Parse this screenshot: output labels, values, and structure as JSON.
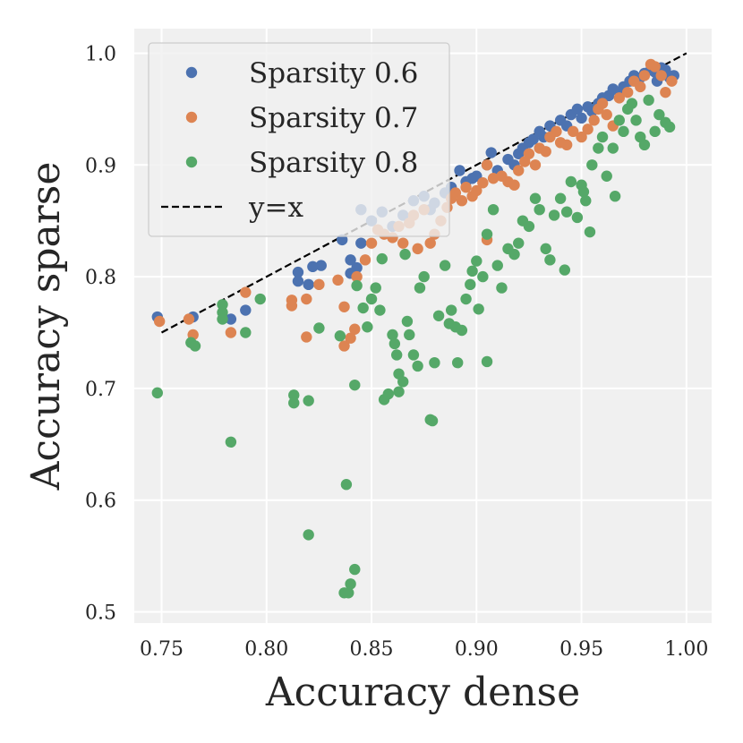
{
  "chart_data": {
    "type": "scatter",
    "xlabel": "Accuracy dense",
    "ylabel": "Accuracy sparse",
    "xlim": [
      0.737,
      1.012
    ],
    "ylim": [
      0.49,
      1.022
    ],
    "xticks": [
      0.75,
      0.8,
      0.85,
      0.9,
      0.95,
      1.0
    ],
    "xtick_labels": [
      "0.75",
      "0.80",
      "0.85",
      "0.90",
      "0.95",
      "1.00"
    ],
    "yticks": [
      0.5,
      0.6,
      0.7,
      0.8,
      0.9,
      1.0
    ],
    "ytick_labels": [
      "0.5",
      "0.6",
      "0.7",
      "0.8",
      "0.9",
      "1.0"
    ],
    "grid": true,
    "legend_position": "top-left",
    "reference_line": {
      "name": "y=x",
      "x": [
        0.75,
        1.0
      ],
      "y": [
        0.75,
        1.0
      ],
      "color": "#000000",
      "style": "dashed"
    },
    "series": [
      {
        "name": "Sparsity 0.6",
        "color": "#4c72b0",
        "points": [
          [
            0.748,
            0.764
          ],
          [
            0.765,
            0.764
          ],
          [
            0.783,
            0.762
          ],
          [
            0.79,
            0.77
          ],
          [
            0.815,
            0.804
          ],
          [
            0.815,
            0.796
          ],
          [
            0.822,
            0.809
          ],
          [
            0.826,
            0.81
          ],
          [
            0.82,
            0.793
          ],
          [
            0.836,
            0.833
          ],
          [
            0.84,
            0.815
          ],
          [
            0.845,
            0.83
          ],
          [
            0.84,
            0.803
          ],
          [
            0.843,
            0.808
          ],
          [
            0.845,
            0.86
          ],
          [
            0.85,
            0.85
          ],
          [
            0.855,
            0.858
          ],
          [
            0.86,
            0.845
          ],
          [
            0.865,
            0.855
          ],
          [
            0.87,
            0.868
          ],
          [
            0.875,
            0.872
          ],
          [
            0.878,
            0.86
          ],
          [
            0.88,
            0.866
          ],
          [
            0.885,
            0.875
          ],
          [
            0.888,
            0.88
          ],
          [
            0.892,
            0.895
          ],
          [
            0.895,
            0.885
          ],
          [
            0.898,
            0.888
          ],
          [
            0.9,
            0.89
          ],
          [
            0.905,
            0.9
          ],
          [
            0.907,
            0.911
          ],
          [
            0.91,
            0.895
          ],
          [
            0.915,
            0.905
          ],
          [
            0.918,
            0.9
          ],
          [
            0.92,
            0.91
          ],
          [
            0.922,
            0.915
          ],
          [
            0.925,
            0.92
          ],
          [
            0.927,
            0.923
          ],
          [
            0.93,
            0.93
          ],
          [
            0.932,
            0.925
          ],
          [
            0.935,
            0.935
          ],
          [
            0.937,
            0.93
          ],
          [
            0.94,
            0.94
          ],
          [
            0.943,
            0.935
          ],
          [
            0.945,
            0.945
          ],
          [
            0.948,
            0.95
          ],
          [
            0.95,
            0.942
          ],
          [
            0.953,
            0.952
          ],
          [
            0.955,
            0.948
          ],
          [
            0.958,
            0.955
          ],
          [
            0.96,
            0.96
          ],
          [
            0.963,
            0.962
          ],
          [
            0.965,
            0.968
          ],
          [
            0.968,
            0.965
          ],
          [
            0.97,
            0.97
          ],
          [
            0.973,
            0.975
          ],
          [
            0.975,
            0.98
          ],
          [
            0.978,
            0.978
          ],
          [
            0.98,
            0.982
          ],
          [
            0.983,
            0.985
          ],
          [
            0.985,
            0.983
          ],
          [
            0.988,
            0.987
          ],
          [
            0.99,
            0.985
          ],
          [
            0.992,
            0.978
          ],
          [
            0.994,
            0.98
          ],
          [
            0.986,
            0.975
          ]
        ]
      },
      {
        "name": "Sparsity 0.7",
        "color": "#dd8452",
        "points": [
          [
            0.749,
            0.76
          ],
          [
            0.763,
            0.762
          ],
          [
            0.765,
            0.748
          ],
          [
            0.783,
            0.75
          ],
          [
            0.79,
            0.786
          ],
          [
            0.812,
            0.779
          ],
          [
            0.812,
            0.774
          ],
          [
            0.819,
            0.78
          ],
          [
            0.819,
            0.746
          ],
          [
            0.825,
            0.793
          ],
          [
            0.834,
            0.797
          ],
          [
            0.837,
            0.738
          ],
          [
            0.837,
            0.773
          ],
          [
            0.84,
            0.745
          ],
          [
            0.842,
            0.753
          ],
          [
            0.843,
            0.8
          ],
          [
            0.847,
            0.815
          ],
          [
            0.85,
            0.83
          ],
          [
            0.853,
            0.842
          ],
          [
            0.856,
            0.838
          ],
          [
            0.86,
            0.835
          ],
          [
            0.863,
            0.845
          ],
          [
            0.865,
            0.83
          ],
          [
            0.868,
            0.848
          ],
          [
            0.87,
            0.855
          ],
          [
            0.872,
            0.825
          ],
          [
            0.875,
            0.86
          ],
          [
            0.878,
            0.83
          ],
          [
            0.88,
            0.838
          ],
          [
            0.883,
            0.85
          ],
          [
            0.886,
            0.862
          ],
          [
            0.888,
            0.87
          ],
          [
            0.89,
            0.875
          ],
          [
            0.893,
            0.868
          ],
          [
            0.895,
            0.88
          ],
          [
            0.898,
            0.872
          ],
          [
            0.9,
            0.877
          ],
          [
            0.903,
            0.884
          ],
          [
            0.905,
            0.9
          ],
          [
            0.905,
            0.833
          ],
          [
            0.908,
            0.888
          ],
          [
            0.912,
            0.89
          ],
          [
            0.915,
            0.885
          ],
          [
            0.918,
            0.882
          ],
          [
            0.92,
            0.895
          ],
          [
            0.923,
            0.903
          ],
          [
            0.925,
            0.91
          ],
          [
            0.928,
            0.9
          ],
          [
            0.93,
            0.915
          ],
          [
            0.933,
            0.912
          ],
          [
            0.935,
            0.925
          ],
          [
            0.938,
            0.93
          ],
          [
            0.94,
            0.92
          ],
          [
            0.943,
            0.918
          ],
          [
            0.946,
            0.93
          ],
          [
            0.95,
            0.925
          ],
          [
            0.953,
            0.932
          ],
          [
            0.956,
            0.94
          ],
          [
            0.958,
            0.95
          ],
          [
            0.96,
            0.955
          ],
          [
            0.962,
            0.945
          ],
          [
            0.965,
            0.935
          ],
          [
            0.968,
            0.96
          ],
          [
            0.972,
            0.965
          ],
          [
            0.975,
            0.975
          ],
          [
            0.978,
            0.97
          ],
          [
            0.98,
            0.98
          ],
          [
            0.983,
            0.99
          ],
          [
            0.985,
            0.988
          ],
          [
            0.988,
            0.98
          ],
          [
            0.99,
            0.965
          ],
          [
            0.993,
            0.975
          ]
        ]
      },
      {
        "name": "Sparsity 0.8",
        "color": "#55a868",
        "points": [
          [
            0.748,
            0.696
          ],
          [
            0.764,
            0.741
          ],
          [
            0.766,
            0.738
          ],
          [
            0.779,
            0.775
          ],
          [
            0.779,
            0.768
          ],
          [
            0.779,
            0.762
          ],
          [
            0.783,
            0.652
          ],
          [
            0.79,
            0.75
          ],
          [
            0.797,
            0.78
          ],
          [
            0.813,
            0.694
          ],
          [
            0.813,
            0.687
          ],
          [
            0.82,
            0.689
          ],
          [
            0.82,
            0.569
          ],
          [
            0.825,
            0.754
          ],
          [
            0.835,
            0.747
          ],
          [
            0.837,
            0.517
          ],
          [
            0.839,
            0.517
          ],
          [
            0.838,
            0.614
          ],
          [
            0.84,
            0.525
          ],
          [
            0.842,
            0.538
          ],
          [
            0.842,
            0.703
          ],
          [
            0.843,
            0.792
          ],
          [
            0.846,
            0.772
          ],
          [
            0.848,
            0.755
          ],
          [
            0.85,
            0.78
          ],
          [
            0.852,
            0.79
          ],
          [
            0.854,
            0.77
          ],
          [
            0.855,
            0.816
          ],
          [
            0.856,
            0.69
          ],
          [
            0.858,
            0.695
          ],
          [
            0.86,
            0.748
          ],
          [
            0.861,
            0.74
          ],
          [
            0.862,
            0.73
          ],
          [
            0.863,
            0.713
          ],
          [
            0.863,
            0.697
          ],
          [
            0.865,
            0.706
          ],
          [
            0.866,
            0.82
          ],
          [
            0.867,
            0.76
          ],
          [
            0.868,
            0.748
          ],
          [
            0.87,
            0.73
          ],
          [
            0.872,
            0.72
          ],
          [
            0.873,
            0.79
          ],
          [
            0.875,
            0.8
          ],
          [
            0.878,
            0.672
          ],
          [
            0.879,
            0.671
          ],
          [
            0.88,
            0.723
          ],
          [
            0.882,
            0.765
          ],
          [
            0.885,
            0.81
          ],
          [
            0.887,
            0.758
          ],
          [
            0.888,
            0.77
          ],
          [
            0.89,
            0.755
          ],
          [
            0.891,
            0.723
          ],
          [
            0.893,
            0.752
          ],
          [
            0.895,
            0.78
          ],
          [
            0.897,
            0.793
          ],
          [
            0.898,
            0.805
          ],
          [
            0.9,
            0.814
          ],
          [
            0.901,
            0.771
          ],
          [
            0.903,
            0.8
          ],
          [
            0.905,
            0.724
          ],
          [
            0.905,
            0.838
          ],
          [
            0.908,
            0.86
          ],
          [
            0.91,
            0.81
          ],
          [
            0.912,
            0.79
          ],
          [
            0.915,
            0.825
          ],
          [
            0.918,
            0.82
          ],
          [
            0.92,
            0.83
          ],
          [
            0.922,
            0.85
          ],
          [
            0.925,
            0.845
          ],
          [
            0.928,
            0.87
          ],
          [
            0.93,
            0.86
          ],
          [
            0.933,
            0.825
          ],
          [
            0.935,
            0.815
          ],
          [
            0.937,
            0.855
          ],
          [
            0.94,
            0.87
          ],
          [
            0.942,
            0.806
          ],
          [
            0.943,
            0.858
          ],
          [
            0.945,
            0.885
          ],
          [
            0.948,
            0.853
          ],
          [
            0.95,
            0.882
          ],
          [
            0.951,
            0.876
          ],
          [
            0.952,
            0.868
          ],
          [
            0.954,
            0.84
          ],
          [
            0.955,
            0.9
          ],
          [
            0.958,
            0.915
          ],
          [
            0.96,
            0.925
          ],
          [
            0.962,
            0.89
          ],
          [
            0.965,
            0.915
          ],
          [
            0.966,
            0.872
          ],
          [
            0.968,
            0.94
          ],
          [
            0.97,
            0.93
          ],
          [
            0.972,
            0.95
          ],
          [
            0.974,
            0.955
          ],
          [
            0.976,
            0.94
          ],
          [
            0.978,
            0.925
          ],
          [
            0.98,
            0.918
          ],
          [
            0.982,
            0.958
          ],
          [
            0.985,
            0.93
          ],
          [
            0.987,
            0.945
          ],
          [
            0.99,
            0.938
          ],
          [
            0.992,
            0.934
          ]
        ]
      }
    ]
  }
}
